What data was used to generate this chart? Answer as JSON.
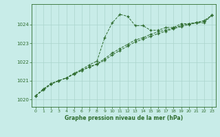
{
  "title": "Graphe pression niveau de la mer (hPa)",
  "bg_color": "#c8ece8",
  "grid_color": "#aad4cc",
  "line_color": "#2d6b2d",
  "xlim": [
    -0.5,
    23.5
  ],
  "ylim": [
    1019.6,
    1025.1
  ],
  "xticks": [
    0,
    1,
    2,
    3,
    4,
    5,
    6,
    7,
    8,
    9,
    10,
    11,
    12,
    13,
    14,
    15,
    16,
    17,
    18,
    19,
    20,
    21,
    22,
    23
  ],
  "yticks": [
    1020,
    1021,
    1022,
    1023,
    1024
  ],
  "series1": [
    1020.2,
    1020.5,
    1020.8,
    1021.0,
    1021.15,
    1021.4,
    1021.6,
    1021.85,
    1022.05,
    1023.3,
    1024.1,
    1024.55,
    1024.45,
    1023.95,
    1023.95,
    1023.7,
    1023.7,
    1023.85,
    1023.85,
    1024.05,
    1024.05,
    1024.1,
    1024.1,
    1024.5
  ],
  "series2": [
    1020.2,
    1020.55,
    1020.85,
    1021.0,
    1021.15,
    1021.35,
    1021.55,
    1021.72,
    1021.88,
    1022.1,
    1022.38,
    1022.62,
    1022.85,
    1023.08,
    1023.22,
    1023.38,
    1023.52,
    1023.65,
    1023.78,
    1023.9,
    1024.0,
    1024.1,
    1024.18,
    1024.5
  ],
  "series3": [
    1020.2,
    1020.55,
    1020.85,
    1021.0,
    1021.15,
    1021.35,
    1021.55,
    1021.75,
    1021.9,
    1022.18,
    1022.48,
    1022.72,
    1022.95,
    1023.18,
    1023.3,
    1023.48,
    1023.62,
    1023.72,
    1023.82,
    1023.95,
    1024.05,
    1024.12,
    1024.22,
    1024.5
  ]
}
